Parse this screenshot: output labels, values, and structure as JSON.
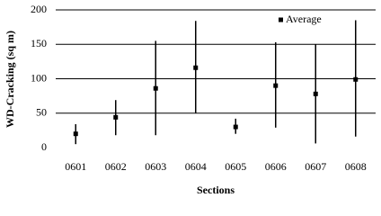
{
  "chart_data": {
    "type": "range-scatter",
    "x_label": "Sections",
    "y_label": "WD-Cracking (sq m)",
    "categories": [
      "0601",
      "0602",
      "0603",
      "0604",
      "0605",
      "0606",
      "0607",
      "0608"
    ],
    "series": [
      {
        "name": "Average",
        "color": "#000000",
        "values": [
          20,
          44,
          86,
          116,
          30,
          90,
          78,
          99
        ],
        "low": [
          5,
          18,
          18,
          50,
          20,
          29,
          6,
          16
        ],
        "high": [
          34,
          69,
          155,
          184,
          42,
          153,
          150,
          185
        ]
      }
    ],
    "ylim": [
      0,
      200
    ],
    "yticks": [
      0,
      50,
      100,
      150,
      200
    ],
    "grid": true,
    "legend": "upper right"
  }
}
